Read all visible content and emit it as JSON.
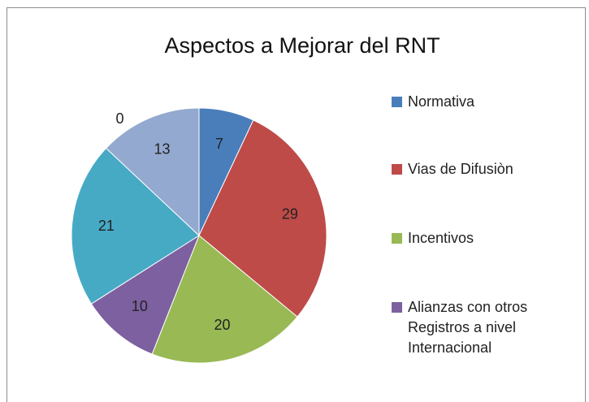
{
  "chart_data": {
    "type": "pie",
    "title": "Aspectos a Mejorar del RNT",
    "categories": [
      "Normativa",
      "Vias de Difusiòn",
      "Incentivos",
      "Alianzas con otros Registros a nivel Internacional",
      null,
      null,
      null
    ],
    "values": [
      7,
      29,
      20,
      10,
      21,
      13,
      0
    ],
    "colors": [
      "#4a7ebb",
      "#be4b48",
      "#98b954",
      "#7d60a0",
      "#46aac5",
      "#93a9cf",
      "#f79646"
    ],
    "legend": "right"
  }
}
